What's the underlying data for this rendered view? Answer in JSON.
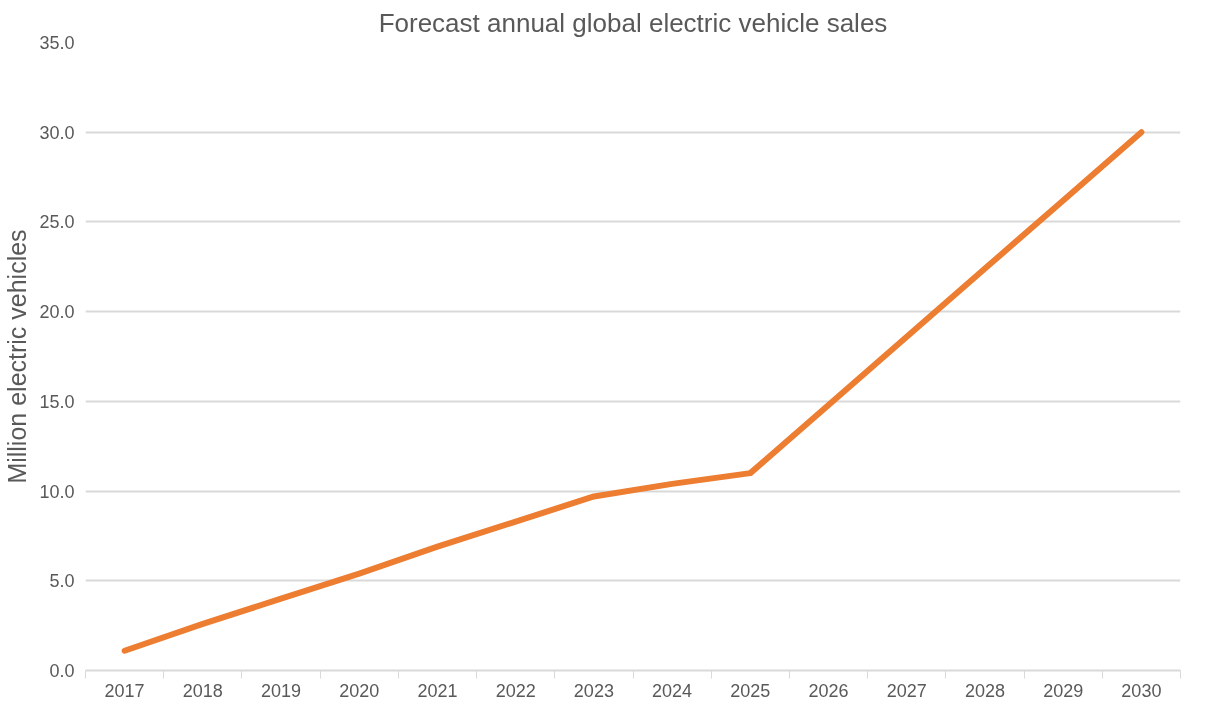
{
  "chart_data": {
    "type": "line",
    "title": "Forecast annual global electric vehicle sales",
    "ylabel": "Million electric vehicles",
    "categories": [
      "2017",
      "2018",
      "2019",
      "2020",
      "2021",
      "2022",
      "2023",
      "2024",
      "2025",
      "2026",
      "2027",
      "2028",
      "2029",
      "2030"
    ],
    "series": [
      {
        "color": "#ed7d31",
        "values": [
          1.1,
          2.6,
          4.0,
          5.4,
          6.9,
          8.3,
          9.7,
          10.4,
          11.0,
          14.8,
          18.6,
          22.4,
          26.2,
          30.0
        ]
      }
    ],
    "ylim": [
      0,
      35
    ],
    "yticks": [
      {
        "value": 0,
        "label": "0.0"
      },
      {
        "value": 5,
        "label": "5.0"
      },
      {
        "value": 10,
        "label": "10.0"
      },
      {
        "value": 15,
        "label": "15.0"
      },
      {
        "value": 20,
        "label": "20.0"
      },
      {
        "value": 25,
        "label": "25.0"
      },
      {
        "value": 30,
        "label": "30.0"
      },
      {
        "value": 35,
        "label": "35.0"
      }
    ],
    "grid": "y",
    "marker": "none",
    "line_style": "solid"
  }
}
